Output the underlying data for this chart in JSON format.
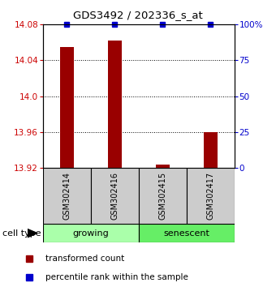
{
  "title": "GDS3492 / 202336_s_at",
  "samples": [
    "GSM302414",
    "GSM302416",
    "GSM302415",
    "GSM302417"
  ],
  "transformed_counts": [
    14.055,
    14.062,
    13.924,
    13.96
  ],
  "percentile_ranks": [
    100,
    100,
    100,
    100
  ],
  "ylim_left": [
    13.92,
    14.08
  ],
  "yticks_left": [
    13.92,
    13.96,
    14.0,
    14.04,
    14.08
  ],
  "yticks_right": [
    0,
    25,
    50,
    75,
    100
  ],
  "ylim_right": [
    0,
    100
  ],
  "groups": [
    {
      "name": "growing",
      "indices": [
        0,
        1
      ],
      "color": "#aaffaa"
    },
    {
      "name": "senescent",
      "indices": [
        2,
        3
      ],
      "color": "#66ee66"
    }
  ],
  "bar_color": "#990000",
  "percentile_color": "#0000CC",
  "background_color": "#ffffff",
  "plot_bg_color": "#ffffff",
  "sample_box_color": "#cccccc",
  "ylabel_left_color": "#CC0000",
  "ylabel_right_color": "#0000CC",
  "legend_items": [
    {
      "label": "transformed count",
      "color": "#990000"
    },
    {
      "label": "percentile rank within the sample",
      "color": "#0000CC"
    }
  ],
  "cell_type_label": "cell type"
}
